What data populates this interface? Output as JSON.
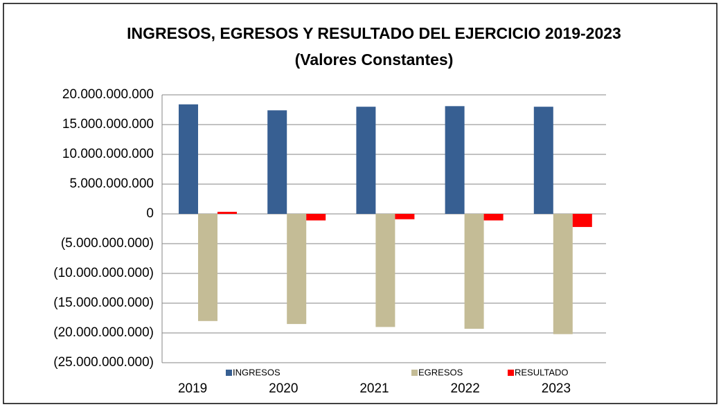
{
  "chart_data": {
    "type": "bar",
    "title": "INGRESOS, EGRESOS Y RESULTADO DEL EJERCICIO 2019-2023",
    "subtitle": "(Valores Constantes)",
    "categories": [
      "2019",
      "2020",
      "2021",
      "2022",
      "2023"
    ],
    "series": [
      {
        "name": "INGRESOS",
        "color": "#375f92",
        "values": [
          18400000000,
          17400000000,
          18000000000,
          18100000000,
          18000000000
        ]
      },
      {
        "name": "EGRESOS",
        "color": "#c4bc96",
        "values": [
          -18000000000,
          -18500000000,
          -19000000000,
          -19300000000,
          -20200000000
        ]
      },
      {
        "name": "RESULTADO",
        "color": "#ff0000",
        "values": [
          350000000,
          -1100000000,
          -900000000,
          -1100000000,
          -2200000000
        ]
      }
    ],
    "ylim": [
      -25000000000,
      20000000000
    ],
    "yticks": [
      {
        "value": -25000000000,
        "label": "(25.000.000.000)"
      },
      {
        "value": -20000000000,
        "label": "(20.000.000.000)"
      },
      {
        "value": -15000000000,
        "label": "(15.000.000.000)"
      },
      {
        "value": -10000000000,
        "label": "(10.000.000.000)"
      },
      {
        "value": -5000000000,
        "label": "(5.000.000.000)"
      },
      0,
      {
        "value": 5000000000,
        "label": "5.000.000.000"
      },
      {
        "value": 10000000000,
        "label": "10.000.000.000"
      },
      {
        "value": 15000000000,
        "label": "15.000.000.000"
      },
      {
        "value": 20000000000,
        "label": "20.000.000.000"
      }
    ],
    "grid": true,
    "legend": "bottom"
  }
}
